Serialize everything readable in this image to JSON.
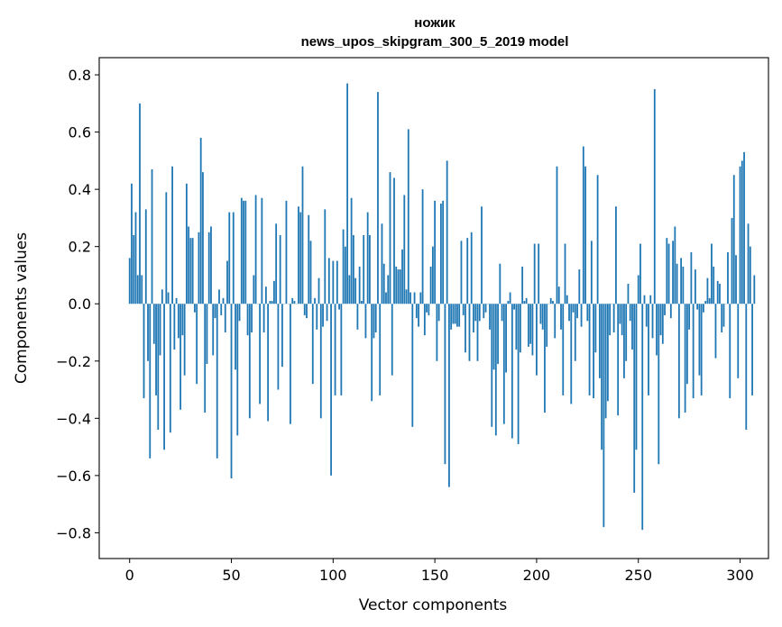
{
  "chart_data": {
    "type": "bar",
    "title": "ножик",
    "subtitle": "news_upos_skipgram_300_5_2019 model",
    "xlabel": "Vector components",
    "ylabel": "Components values",
    "xlim": [
      -14.95,
      313.95
    ],
    "ylim": [
      -0.89,
      0.86
    ],
    "xticks": [
      0,
      50,
      100,
      150,
      200,
      250,
      300
    ],
    "yticks": [
      0.8,
      0.6,
      0.4,
      0.2,
      0.0,
      -0.2,
      -0.4,
      -0.6,
      -0.8
    ],
    "ytick_labels": [
      "0.8",
      "0.6",
      "0.4",
      "0.2",
      "0.0",
      "−0.2",
      "−0.4",
      "−0.6",
      "−0.8"
    ],
    "bar_color": "#1f77b4",
    "grid": false,
    "values": [
      0.16,
      0.42,
      0.24,
      0.32,
      0.1,
      0.7,
      0.1,
      -0.33,
      0.33,
      -0.2,
      -0.54,
      0.47,
      -0.14,
      -0.32,
      -0.44,
      -0.18,
      0.05,
      -0.51,
      0.39,
      0.04,
      -0.45,
      0.48,
      -0.16,
      0.02,
      -0.12,
      -0.37,
      -0.11,
      -0.25,
      0.42,
      0.27,
      0.23,
      0.23,
      -0.03,
      -0.28,
      0.25,
      0.58,
      0.46,
      -0.38,
      -0.21,
      0.25,
      0.27,
      -0.18,
      -0.05,
      -0.54,
      0.05,
      -0.04,
      0.02,
      -0.1,
      0.15,
      0.32,
      -0.61,
      0.32,
      -0.23,
      -0.46,
      -0.06,
      0.37,
      0.36,
      0.36,
      -0.11,
      -0.4,
      -0.1,
      0.1,
      0.38,
      0.0,
      -0.35,
      0.37,
      -0.1,
      0.06,
      -0.41,
      0.01,
      0.01,
      0.08,
      0.28,
      -0.3,
      0.24,
      -0.22,
      0.0,
      0.36,
      0.0,
      -0.42,
      0.02,
      0.01,
      0.0,
      0.34,
      0.32,
      0.48,
      -0.04,
      -0.05,
      0.31,
      0.22,
      -0.28,
      0.02,
      -0.09,
      0.09,
      -0.4,
      -0.08,
      0.33,
      -0.06,
      0.16,
      -0.6,
      0.15,
      -0.32,
      0.15,
      -0.02,
      -0.32,
      0.26,
      0.2,
      0.77,
      0.1,
      0.37,
      0.24,
      0.09,
      -0.09,
      0.13,
      0.01,
      0.24,
      -0.12,
      0.32,
      0.24,
      -0.34,
      -0.12,
      -0.1,
      0.74,
      -0.32,
      0.28,
      0.14,
      0.04,
      0.1,
      0.46,
      -0.25,
      0.44,
      0.13,
      0.12,
      0.12,
      0.19,
      0.38,
      0.05,
      0.61,
      0.04,
      -0.43,
      0.04,
      -0.05,
      -0.08,
      0.04,
      0.4,
      -0.11,
      -0.03,
      -0.04,
      0.13,
      0.2,
      0.36,
      -0.2,
      -0.06,
      0.35,
      0.36,
      -0.56,
      0.5,
      -0.64,
      -0.09,
      -0.07,
      -0.07,
      -0.08,
      -0.08,
      0.22,
      -0.04,
      -0.17,
      0.23,
      -0.2,
      0.25,
      -0.1,
      -0.06,
      -0.2,
      -0.06,
      0.34,
      -0.05,
      -0.03,
      0.0,
      -0.09,
      -0.43,
      -0.23,
      -0.46,
      -0.21,
      0.14,
      -0.06,
      -0.42,
      -0.24,
      0.01,
      0.04,
      -0.47,
      -0.02,
      -0.16,
      -0.49,
      -0.17,
      0.13,
      0.01,
      0.02,
      -0.15,
      -0.14,
      -0.18,
      0.21,
      -0.25,
      0.21,
      -0.07,
      -0.09,
      -0.38,
      -0.15,
      0.0,
      0.02,
      0.01,
      -0.12,
      0.48,
      0.06,
      -0.09,
      -0.32,
      0.21,
      0.03,
      -0.06,
      -0.35,
      -0.03,
      -0.2,
      -0.05,
      0.12,
      -0.08,
      0.55,
      0.48,
      -0.06,
      -0.32,
      0.22,
      -0.33,
      -0.17,
      0.45,
      -0.26,
      -0.51,
      -0.78,
      -0.4,
      -0.34,
      -0.11,
      0.0,
      -0.1,
      0.34,
      -0.39,
      -0.07,
      -0.11,
      -0.26,
      -0.2,
      0.07,
      -0.06,
      -0.16,
      -0.66,
      -0.51,
      0.1,
      0.21,
      -0.79,
      0.03,
      -0.08,
      -0.32,
      0.03,
      -0.12,
      0.75,
      -0.18,
      -0.56,
      -0.11,
      -0.14,
      -0.04,
      0.23,
      0.21,
      -0.05,
      0.22,
      0.27,
      0.14,
      -0.4,
      0.16,
      0.13,
      -0.38,
      -0.28,
      -0.09,
      0.18,
      -0.33,
      0.12,
      -0.02,
      -0.25,
      -0.32,
      -0.03,
      0.01,
      0.09,
      0.02,
      0.21,
      0.13,
      -0.19,
      0.08,
      0.07,
      -0.1,
      -0.08,
      0.0,
      0.18,
      -0.33,
      0.3,
      0.45,
      0.17,
      -0.26,
      0.48,
      0.5,
      0.53,
      -0.44,
      0.28,
      0.2,
      -0.32,
      0.1
    ]
  }
}
